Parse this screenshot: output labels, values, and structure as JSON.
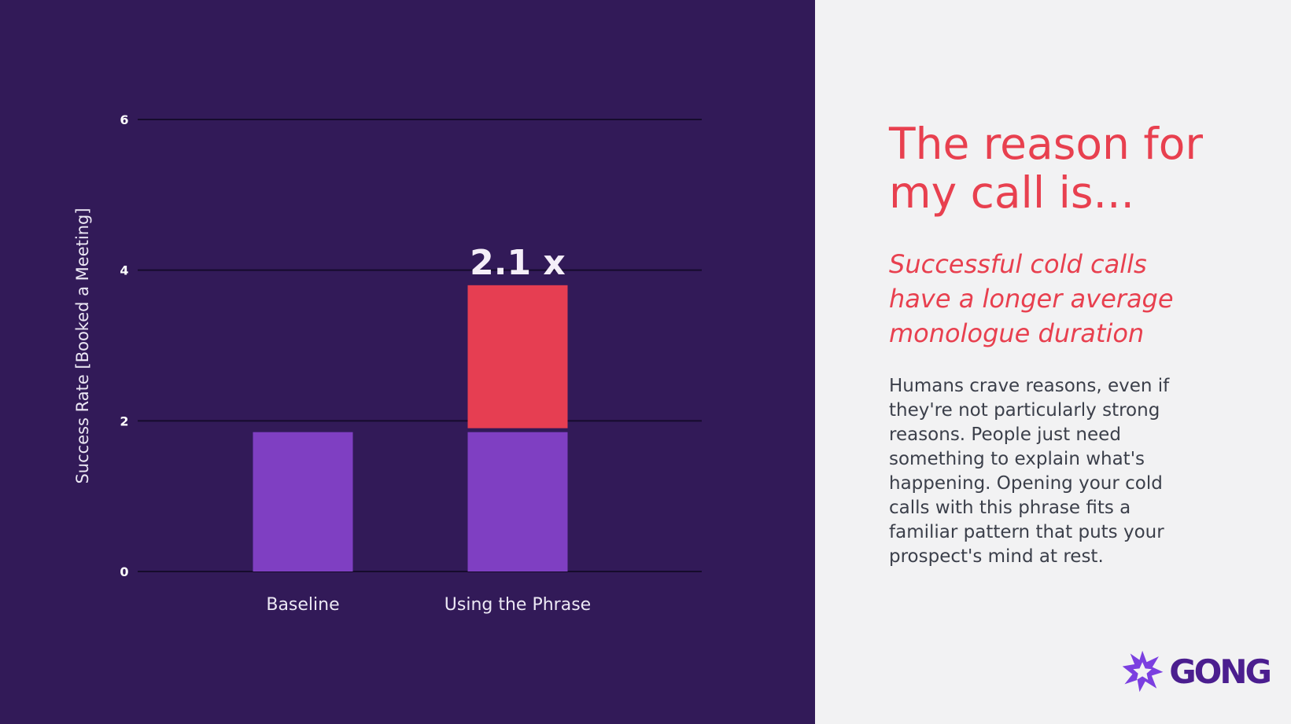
{
  "chart_data": {
    "type": "bar",
    "stacked": true,
    "categories": [
      "Baseline",
      "Using the Phrase"
    ],
    "series": [
      {
        "values": [
          1.85,
          1.85
        ],
        "color": "#7f3fc2"
      },
      {
        "values": [
          0,
          1.95
        ],
        "color": "#e63e52"
      }
    ],
    "ylabel": "Success Rate [Booked a Meeting]",
    "ylim": [
      0,
      6
    ],
    "yticks": [
      0,
      2,
      4,
      6
    ],
    "yticks_labels": [
      "0",
      "2",
      "4",
      "6"
    ],
    "grid": true,
    "annotation": {
      "text": "2.1 x",
      "category": "Using the Phrase"
    }
  },
  "panel": {
    "title_lines": [
      "The reason for",
      "my call is..."
    ],
    "subtitle_lines": [
      "Successful cold calls",
      "have a longer average",
      "monologue duration"
    ],
    "body_lines": [
      "Humans crave reasons, even if",
      "they're not particularly strong",
      "reasons. People just need",
      "something to explain what's",
      "happening. Opening your cold",
      "calls with this phrase fits a",
      "familiar pattern that puts your",
      "prospect's mind at rest."
    ]
  },
  "logo": {
    "text": "GONG",
    "icon": "starburst-icon",
    "color": "#4b1e8f",
    "icon_color": "#7b3fe0"
  },
  "colors": {
    "background_left": "#321a58",
    "background_right": "#f2f2f3",
    "accent": "#e8404f"
  }
}
